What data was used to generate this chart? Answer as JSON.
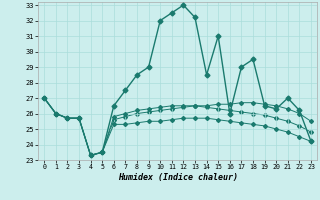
{
  "title": "",
  "xlabel": "Humidex (Indice chaleur)",
  "xlim": [
    -0.5,
    23.5
  ],
  "ylim": [
    23,
    33.2
  ],
  "yticks": [
    23,
    24,
    25,
    26,
    27,
    28,
    29,
    30,
    31,
    32,
    33
  ],
  "xticks": [
    0,
    1,
    2,
    3,
    4,
    5,
    6,
    7,
    8,
    9,
    10,
    11,
    12,
    13,
    14,
    15,
    16,
    17,
    18,
    19,
    20,
    21,
    22,
    23
  ],
  "bg_color": "#cceeed",
  "grid_color": "#aadddb",
  "line_color": "#1a7a6e",
  "series": [
    [
      27,
      26,
      25.7,
      25.7,
      23.3,
      23.5,
      26.5,
      27.5,
      28.5,
      29.0,
      32.0,
      32.5,
      33.0,
      32.2,
      28.5,
      31.0,
      26.0,
      29.0,
      29.5,
      26.5,
      26.3,
      27.0,
      26.2,
      24.2
    ],
    [
      27,
      26,
      25.7,
      25.7,
      23.3,
      23.5,
      25.8,
      26.0,
      26.2,
      26.3,
      26.4,
      26.5,
      26.5,
      26.5,
      26.5,
      26.6,
      26.6,
      26.7,
      26.7,
      26.6,
      26.5,
      26.3,
      26.0,
      25.5
    ],
    [
      27,
      26,
      25.7,
      25.7,
      23.3,
      23.5,
      25.3,
      25.3,
      25.4,
      25.5,
      25.5,
      25.6,
      25.7,
      25.7,
      25.7,
      25.6,
      25.5,
      25.4,
      25.3,
      25.2,
      25.0,
      24.8,
      24.5,
      24.2
    ],
    [
      27,
      26,
      25.7,
      25.7,
      23.3,
      23.5,
      25.6,
      25.8,
      26.0,
      26.1,
      26.2,
      26.3,
      26.4,
      26.5,
      26.4,
      26.3,
      26.2,
      26.1,
      26.0,
      25.9,
      25.7,
      25.5,
      25.2,
      24.8
    ]
  ]
}
